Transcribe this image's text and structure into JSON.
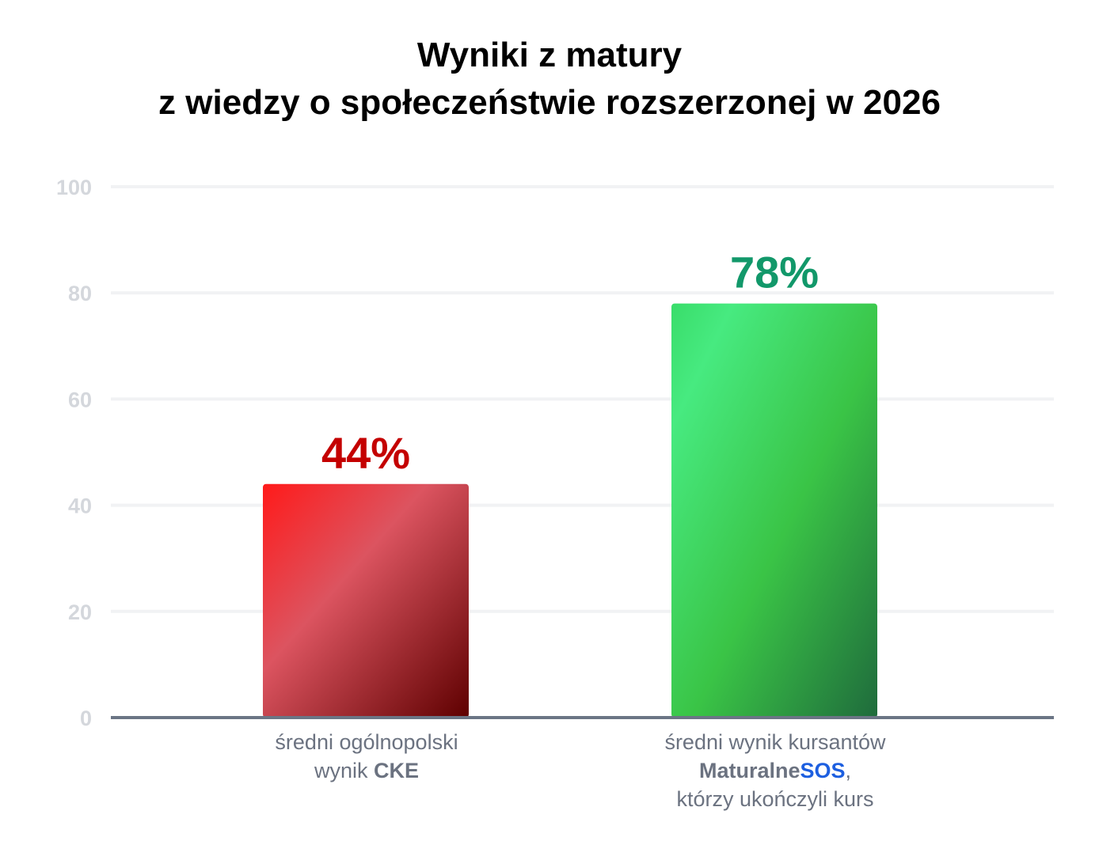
{
  "title_line1": "Wyniki z matury",
  "title_line2": "z wiedzy o społeczeństwie rozszerzonej w 2026",
  "colors": {
    "grid": "#f1f2f4",
    "tick": "#d4d7dc",
    "axis": "#6b7585",
    "label": "#6b7280",
    "brand_blue": "#1d5fe0"
  },
  "chart_data": {
    "type": "bar",
    "ylim": [
      0,
      100
    ],
    "yticks": [
      0,
      20,
      40,
      60,
      80,
      100
    ],
    "grid": true,
    "categories": [
      "średni ogólnopolski wynik CKE",
      "średni wynik kursantów MaturalneSOS, którzy ukończyli kurs"
    ],
    "values": [
      44,
      78
    ],
    "data_labels": [
      "44%",
      "78%"
    ],
    "label_colors": [
      "#c40000",
      "#12986a"
    ]
  },
  "xlabels": {
    "cat1_line1": "średni ogólnopolski",
    "cat1_line2_pre": "wynik ",
    "cat1_line2_bold": "CKE",
    "cat2_line1": "średni wynik kursantów",
    "cat2_brand_a": "Maturalne",
    "cat2_brand_b": "SOS",
    "cat2_comma": ",",
    "cat2_line3": "którzy ukończyli kurs"
  }
}
